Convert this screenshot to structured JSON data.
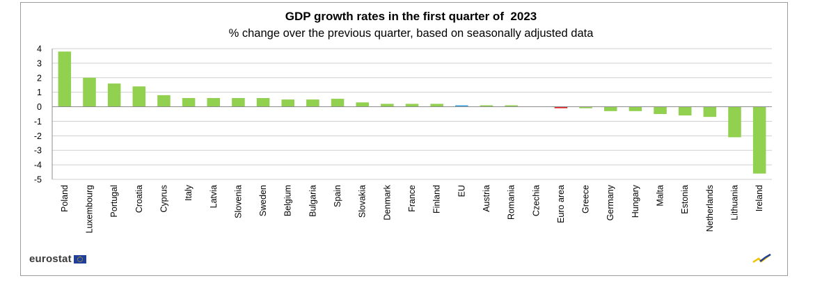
{
  "chart_data": {
    "type": "bar",
    "title": "GDP growth rates in the first quarter of  2023",
    "subtitle": "% change over the previous quarter, based on seasonally adjusted data",
    "categories": [
      "Poland",
      "Luxembourg",
      "Portugal",
      "Croatia",
      "Cyprus",
      "Italy",
      "Latvia",
      "Slovenia",
      "Sweden",
      "Belgium",
      "Bulgaria",
      "Spain",
      "Slovakia",
      "Denmark",
      "France",
      "Finland",
      "EU",
      "Austria",
      "Romania",
      "Czechia",
      "Euro area",
      "Greece",
      "Germany",
      "Hungary",
      "Malta",
      "Estonia",
      "Netherlands",
      "Lithuania",
      "Ireland"
    ],
    "values": [
      3.8,
      2.0,
      1.6,
      1.4,
      0.8,
      0.6,
      0.6,
      0.6,
      0.6,
      0.5,
      0.5,
      0.55,
      0.3,
      0.2,
      0.2,
      0.2,
      0.1,
      0.1,
      0.1,
      0.0,
      -0.1,
      -0.1,
      -0.3,
      -0.3,
      -0.5,
      -0.6,
      -0.7,
      -2.1,
      -4.6
    ],
    "ylim": [
      -5,
      4
    ],
    "yticks": [
      "4",
      "3",
      "2",
      "1",
      "0",
      "-1",
      "-2",
      "-3",
      "-4",
      "-5"
    ],
    "grid": true,
    "legend": "none",
    "colors": {
      "default": "#92d050",
      "EU": "#3aa3e0",
      "Euro area": "#e02020",
      "grid": "#cfcfcf",
      "axis": "#8c8c8c"
    }
  },
  "brand": {
    "text": "eurostat",
    "flag_icon": "eu-flag-icon",
    "mark_icon": "eurostat-mark-icon"
  }
}
